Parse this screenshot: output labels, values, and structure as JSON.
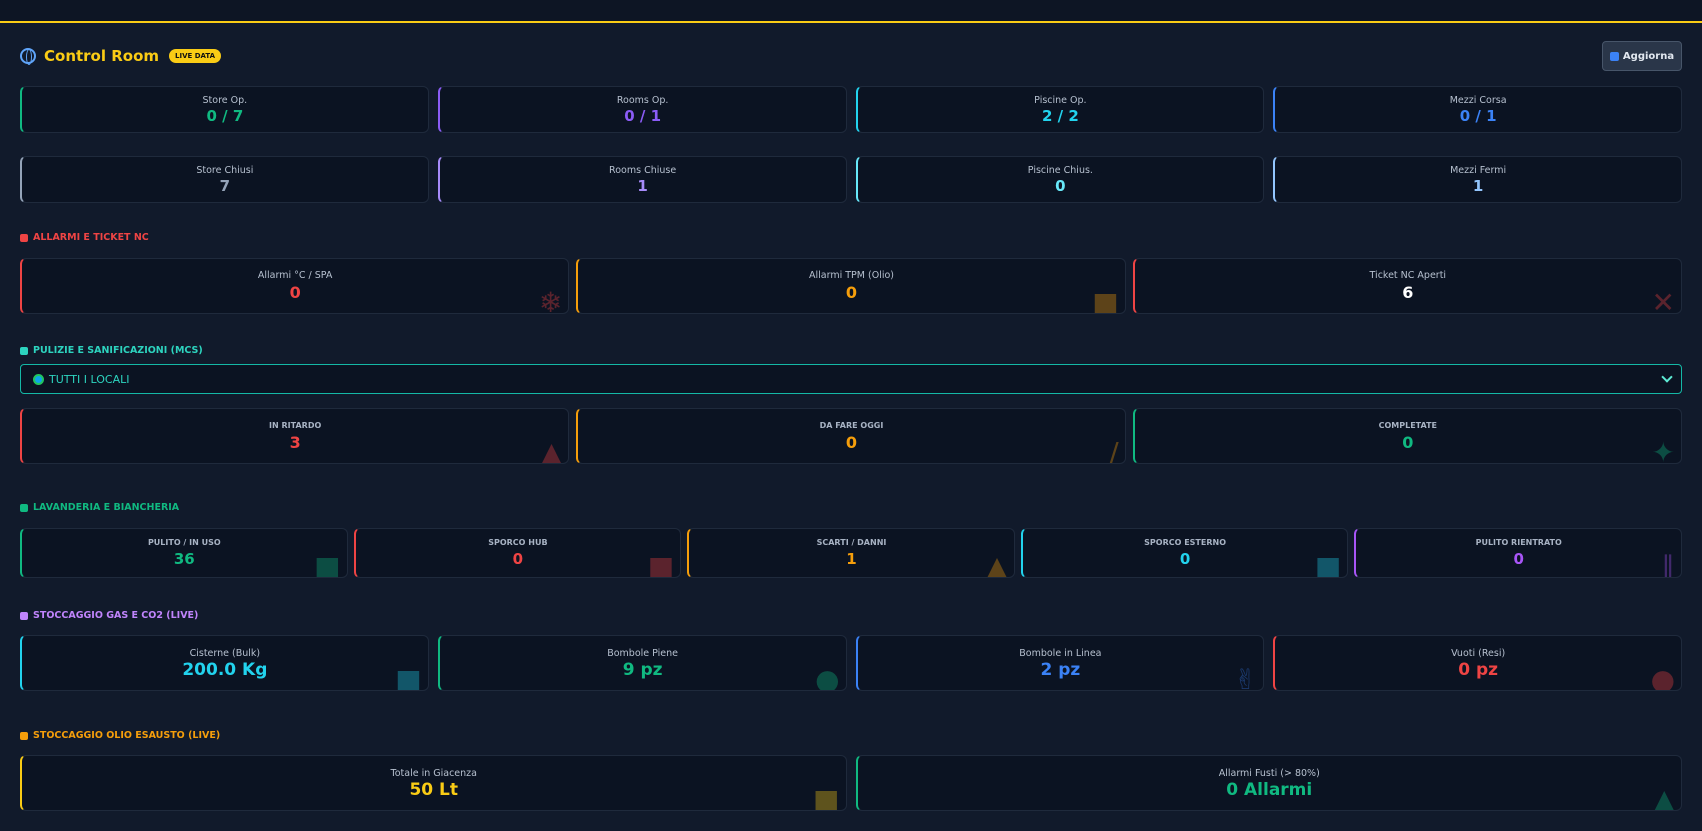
{
  "header": {
    "title": "Control Room",
    "badge": "LIVE DATA",
    "refresh_label": "Aggiorna"
  },
  "ops_row": [
    {
      "label": "Store Op.",
      "value": "0 / 7",
      "color": "#10b981"
    },
    {
      "label": "Rooms Op.",
      "value": "0 / 1",
      "color": "#8b5cf6"
    },
    {
      "label": "Piscine Op.",
      "value": "2 / 2",
      "color": "#22d3ee"
    },
    {
      "label": "Mezzi Corsa",
      "value": "0 / 1",
      "color": "#3b82f6"
    }
  ],
  "closed_row": [
    {
      "label": "Store Chiusi",
      "value": "7",
      "color": "#94a3b8"
    },
    {
      "label": "Rooms Chiuse",
      "value": "1",
      "color": "#a78bfa"
    },
    {
      "label": "Piscine Chius.",
      "value": "0",
      "color": "#67e8f9"
    },
    {
      "label": "Mezzi Fermi",
      "value": "1",
      "color": "#93c5fd"
    }
  ],
  "alarms": {
    "title": "ALLARMI E TICKET NC",
    "title_color": "#ef4444",
    "cards": [
      {
        "label": "Allarmi °C / SPA",
        "value": "0",
        "color": "#ef4444",
        "icon": "snowflake-icon"
      },
      {
        "label": "Allarmi TPM (Olio)",
        "value": "0",
        "color": "#f59e0b",
        "icon": "fries-icon"
      },
      {
        "label": "Ticket NC Aperti",
        "value": "6",
        "color": "#ef4444",
        "value_color": "#ffffff",
        "icon": "tools-icon"
      }
    ]
  },
  "cleaning": {
    "title": "PULIZIE E SANIFICAZIONI (MCS)",
    "title_color": "#2dd4bf",
    "select_value": "TUTTI I LOCALI",
    "cards": [
      {
        "label": "IN RITARDO",
        "value": "3",
        "color": "#ef4444",
        "icon": "siren-icon"
      },
      {
        "label": "DA FARE OGGI",
        "value": "0",
        "color": "#f59e0b",
        "icon": "broom-icon"
      },
      {
        "label": "COMPLETATE",
        "value": "0",
        "color": "#10b981",
        "icon": "sparkles-icon"
      }
    ]
  },
  "laundry": {
    "title": "LAVANDERIA E BIANCHERIA",
    "title_color": "#10b981",
    "cards": [
      {
        "label": "PULITO / IN USO",
        "value": "36",
        "color": "#10b981",
        "icon": "shirt-icon"
      },
      {
        "label": "SPORCO HUB",
        "value": "0",
        "color": "#ef4444",
        "icon": "basket-icon"
      },
      {
        "label": "SCARTI / DANNI",
        "value": "1",
        "color": "#f59e0b",
        "icon": "warning-icon"
      },
      {
        "label": "SPORCO ESTERNO",
        "value": "0",
        "color": "#22d3ee",
        "icon": "truck-icon"
      },
      {
        "label": "PULITO RIENTRATO",
        "value": "0",
        "color": "#a855f7",
        "icon": "return-icon"
      }
    ]
  },
  "gas": {
    "title": "STOCCAGGIO GAS E CO2 (LIVE)",
    "title_color": "#c084fc",
    "cards": [
      {
        "label": "Cisterne (Bulk)",
        "value": "200.0 Kg",
        "color": "#22d3ee",
        "icon": "tank-icon"
      },
      {
        "label": "Bombole Piene",
        "value": "9 pz",
        "color": "#10b981",
        "icon": "green-circle-icon"
      },
      {
        "label": "Bombole in Linea",
        "value": "2 pz",
        "color": "#3b82f6",
        "icon": "plug-icon"
      },
      {
        "label": "Vuoti (Resi)",
        "value": "0 pz",
        "color": "#ef4444",
        "icon": "red-circle-icon"
      }
    ]
  },
  "oil": {
    "title": "STOCCAGGIO OLIO ESAUSTO (LIVE)",
    "title_color": "#f59e0b",
    "cards": [
      {
        "label": "Totale in Giacenza",
        "value": "50 Lt",
        "color": "#facc15",
        "icon": "barrel-icon"
      },
      {
        "label": "Allarmi Fusti (> 80%)",
        "value": "0 Allarmi",
        "color": "#10b981",
        "icon": "siren-icon"
      }
    ]
  }
}
